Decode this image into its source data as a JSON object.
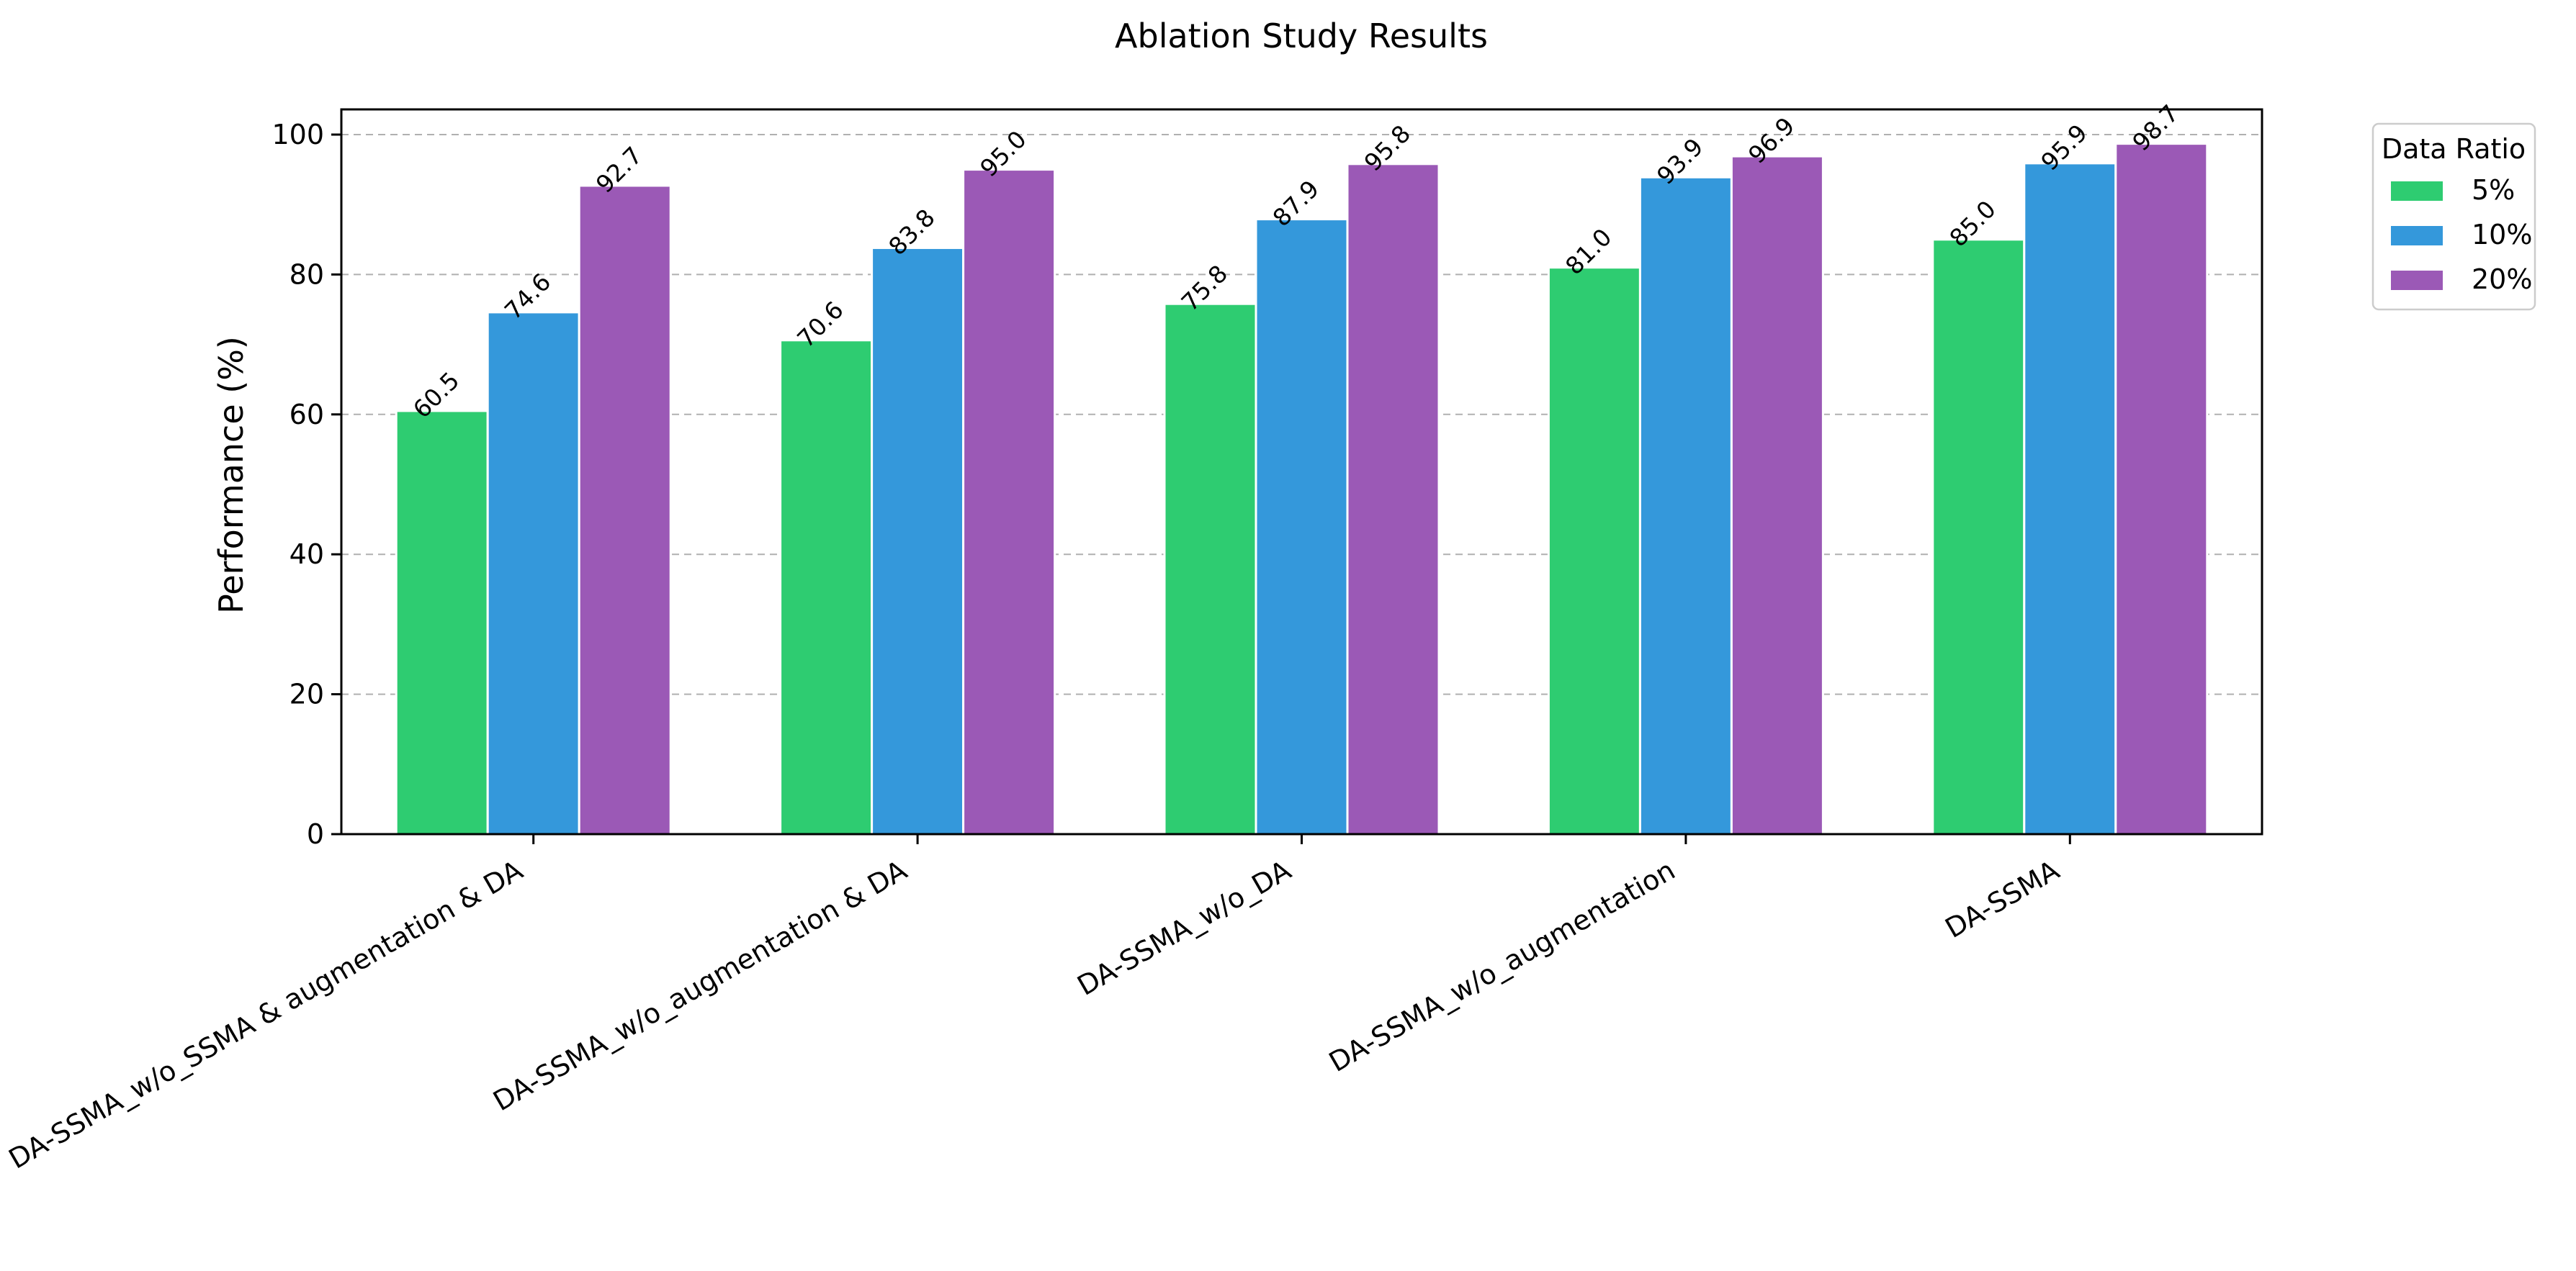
{
  "chart_data": {
    "type": "bar",
    "title": "Ablation Study Results",
    "xlabel": "",
    "ylabel": "Performance (%)",
    "ylim": [
      0,
      103.6
    ],
    "yticks": [
      0,
      20,
      40,
      60,
      80,
      100
    ],
    "grid": "y-dashed",
    "legend_title": "Data Ratio",
    "legend_position": "outside-top-right",
    "categories": [
      "DA-SSMA_w/o_SSMA & augmentation & DA",
      "DA-SSMA_w/o_augmentation & DA",
      "DA-SSMA_w/o_DA",
      "DA-SSMA_w/o_augmentation",
      "DA-SSMA"
    ],
    "series": [
      {
        "name": "5%",
        "color": "#2ecc71",
        "values": [
          60.5,
          70.6,
          75.8,
          81.0,
          85.0
        ]
      },
      {
        "name": "10%",
        "color": "#3498db",
        "values": [
          74.6,
          83.8,
          87.9,
          93.9,
          95.9
        ]
      },
      {
        "name": "20%",
        "color": "#9b59b6",
        "values": [
          92.7,
          95.0,
          95.8,
          96.9,
          98.7
        ]
      }
    ]
  }
}
